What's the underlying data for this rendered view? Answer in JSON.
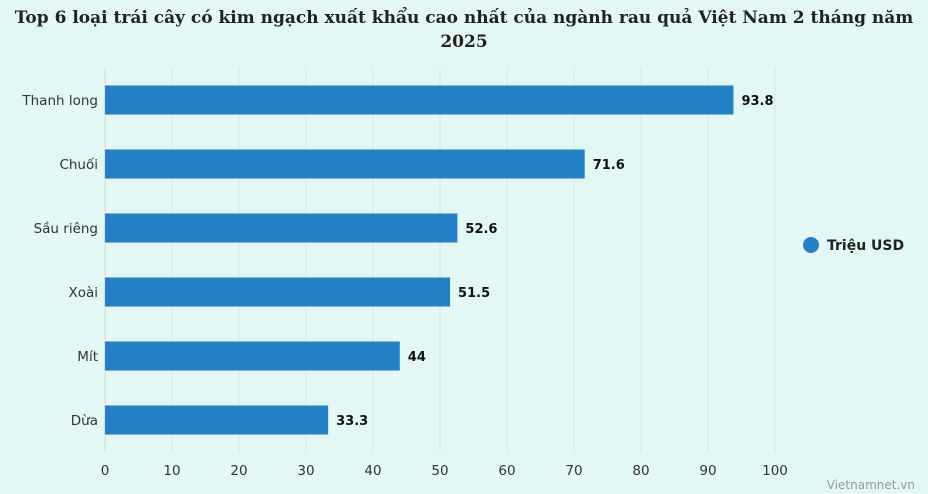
{
  "title_lines": [
    "Top 6 loại trái cây có kim ngạch xuất khẩu cao nhất của ngành rau quả Việt Nam 2 tháng năm",
    "2025"
  ],
  "credit": "Vietnamnet.vn",
  "colors": {
    "bar": "#2280c6",
    "background": "#e3f7f4",
    "grid": "#d6e6e8"
  },
  "chart_data": {
    "type": "bar",
    "orientation": "horizontal",
    "title": "Top 6 loại trái cây có kim ngạch xuất khẩu cao nhất của ngành rau quả Việt Nam 2 tháng năm 2025",
    "categories": [
      "Thanh long",
      "Chuối",
      "Sầu riêng",
      "Xoài",
      "Mít",
      "Dừa"
    ],
    "series": [
      {
        "name": "Triệu USD",
        "values": [
          93.8,
          71.6,
          52.6,
          51.5,
          44,
          33.3
        ]
      }
    ],
    "xlim": [
      0,
      100
    ],
    "xticks": [
      0,
      10,
      20,
      30,
      40,
      50,
      60,
      70,
      80,
      90,
      100
    ],
    "grid": true,
    "legend": "right",
    "data_labels": true
  }
}
